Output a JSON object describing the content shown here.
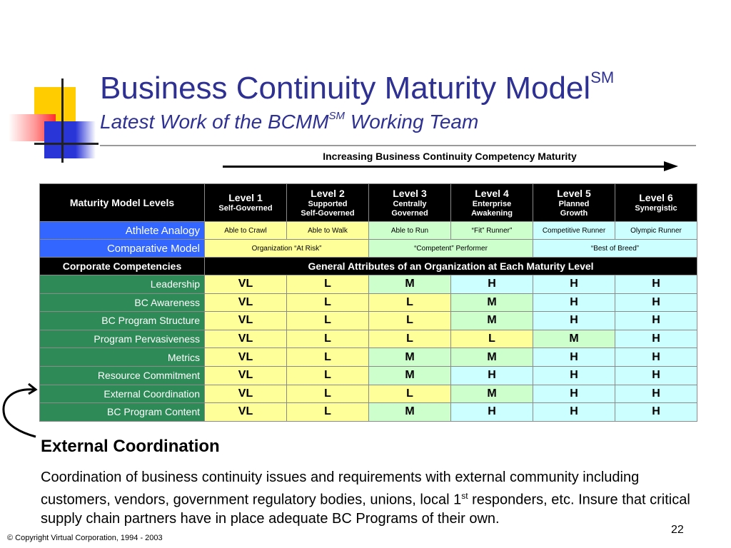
{
  "title": {
    "main": "Business Continuity Maturity Model",
    "main_sup": "SM",
    "sub_a": "Latest Work of the BCMM",
    "sub_sup": "SM",
    "sub_b": " Working Team"
  },
  "arrow_label": "Increasing Business Continuity Competency Maturity",
  "header": {
    "label": "Maturity Model Levels",
    "levels": [
      {
        "name": "Level 1",
        "line1": "Self-Governed",
        "line2": ""
      },
      {
        "name": "Level 2",
        "line1": "Supported",
        "line2": "Self-Governed"
      },
      {
        "name": "Level 3",
        "line1": "Centrally",
        "line2": "Governed"
      },
      {
        "name": "Level 4",
        "line1": "Enterprise",
        "line2": "Awakening"
      },
      {
        "name": "Level 5",
        "line1": "Planned",
        "line2": "Growth"
      },
      {
        "name": "Level 6",
        "line1": "Synergistic",
        "line2": ""
      }
    ]
  },
  "athlete": {
    "label": "Athlete Analogy",
    "values": [
      "Able to Crawl",
      "Able to Walk",
      "Able to Run",
      "“Fit” Runner”",
      "Competitive Runner",
      "Olympic Runner"
    ]
  },
  "comparative": {
    "label": "Comparative Model",
    "values": [
      "Organization “At Risk”",
      "“Competent” Performer",
      "“Best of Breed”"
    ]
  },
  "competencies_header": {
    "label": "Corporate Competencies",
    "text": "General Attributes of an Organization at Each Maturity Level"
  },
  "rows": [
    {
      "label": "Leadership",
      "values": [
        "VL",
        "L",
        "M",
        "H",
        "H",
        "H"
      ]
    },
    {
      "label": "BC Awareness",
      "values": [
        "VL",
        "L",
        "L",
        "M",
        "H",
        "H"
      ]
    },
    {
      "label": "BC Program Structure",
      "values": [
        "VL",
        "L",
        "L",
        "M",
        "H",
        "H"
      ]
    },
    {
      "label": "Program Pervasiveness",
      "values": [
        "VL",
        "L",
        "L",
        "L",
        "M",
        "H"
      ]
    },
    {
      "label": "Metrics",
      "values": [
        "VL",
        "L",
        "M",
        "M",
        "H",
        "H"
      ]
    },
    {
      "label": "Resource Commitment",
      "values": [
        "VL",
        "L",
        "M",
        "H",
        "H",
        "H"
      ]
    },
    {
      "label": "External Coordination",
      "values": [
        "VL",
        "L",
        "L",
        "M",
        "H",
        "H"
      ]
    },
    {
      "label": "BC Program Content",
      "values": [
        "VL",
        "L",
        "M",
        "H",
        "H",
        "H"
      ]
    }
  ],
  "section": {
    "title": "External Coordination",
    "body_a": "Coordination of business continuity issues and requirements with external community including customers, vendors, government regulatory bodies, unions, local 1",
    "body_sup": "st",
    "body_b": " responders, etc.  Insure that critical supply chain partners have in place adequate BC Programs of their own."
  },
  "copyright": "© Copyright Virtual Corporation, 1994 - 2003",
  "page_number": "22",
  "colors": {
    "title": "#2e3192",
    "blue_label": "#3366ff",
    "green_label": "#2e8b57",
    "cell_yellow": "#ffff99",
    "cell_green": "#ccffcc",
    "cell_cyan": "#ccffff"
  }
}
